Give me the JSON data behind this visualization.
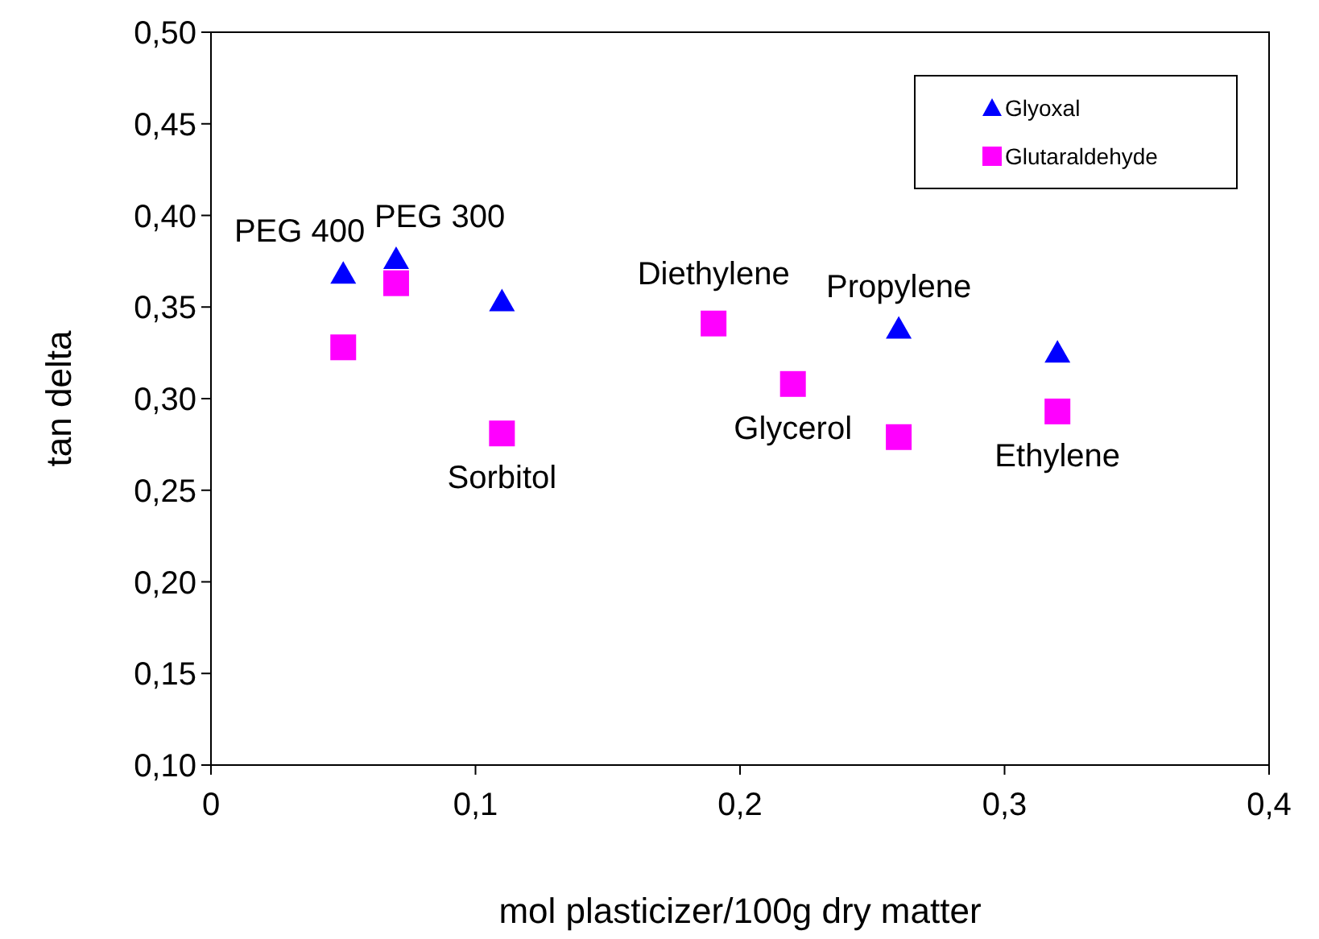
{
  "chart_data": {
    "type": "scatter",
    "xlabel": "mol plasticizer/100g dry matter",
    "ylabel": "tan delta",
    "xlim": [
      0,
      0.4
    ],
    "xticks": [
      {
        "value": 0,
        "label": "0"
      },
      {
        "value": 0.1,
        "label": "0,1"
      },
      {
        "value": 0.2,
        "label": "0,2"
      },
      {
        "value": 0.3,
        "label": "0,3"
      },
      {
        "value": 0.4,
        "label": "0,4"
      }
    ],
    "ylim": [
      0.1,
      0.5
    ],
    "yticks": [
      {
        "value": 0.1,
        "label": "0,10"
      },
      {
        "value": 0.15,
        "label": "0,15"
      },
      {
        "value": 0.2,
        "label": "0,20"
      },
      {
        "value": 0.25,
        "label": "0,25"
      },
      {
        "value": 0.3,
        "label": "0,30"
      },
      {
        "value": 0.35,
        "label": "0,35"
      },
      {
        "value": 0.4,
        "label": "0,40"
      },
      {
        "value": 0.45,
        "label": "0,45"
      },
      {
        "value": 0.5,
        "label": "0,50"
      }
    ],
    "x": [
      0.05,
      0.07,
      0.11,
      0.19,
      0.22,
      0.26,
      0.32
    ],
    "series": [
      {
        "name": "Glyoxal",
        "color": "#0000ff",
        "marker": "triangle",
        "values": [
          0.368,
          0.376,
          0.353,
          null,
          null,
          0.338,
          0.325
        ]
      },
      {
        "name": "Glutaraldehyde",
        "color": "#ff00ff",
        "marker": "square",
        "values": [
          0.328,
          0.363,
          0.281,
          0.341,
          0.308,
          0.279,
          0.293
        ]
      }
    ],
    "annotations": [
      {
        "text": "PEG 400",
        "x": 0.05,
        "y": 0.368
      },
      {
        "text": "PEG 300",
        "x": 0.07,
        "y": 0.376
      },
      {
        "text": "Sorbitol",
        "x": 0.11,
        "y": 0.281
      },
      {
        "text": "Diethylene",
        "x": 0.19,
        "y": 0.345
      },
      {
        "text": "Glycerol",
        "x": 0.22,
        "y": 0.308
      },
      {
        "text": "Propylene",
        "x": 0.26,
        "y": 0.338
      },
      {
        "text": "Ethylene",
        "x": 0.32,
        "y": 0.293
      }
    ],
    "legend": "top right",
    "grid": false
  }
}
